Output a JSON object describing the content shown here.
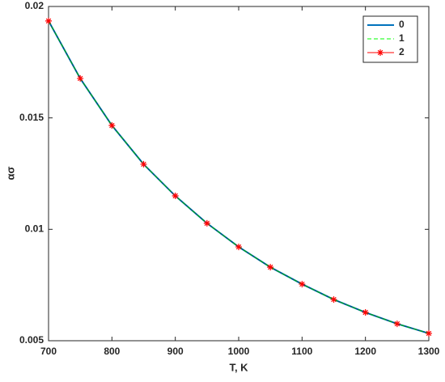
{
  "chart_data": {
    "type": "line",
    "xlabel": "T, K",
    "ylabel": "ασ",
    "x": [
      700,
      750,
      800,
      850,
      900,
      950,
      1000,
      1050,
      1100,
      1150,
      1200,
      1250,
      1300
    ],
    "series": [
      {
        "name": "0",
        "color": "#0072bd",
        "style": "solid",
        "values": [
          0.01935,
          0.01677,
          0.01466,
          0.01292,
          0.0115,
          0.01027,
          0.00921,
          0.0083,
          0.00754,
          0.00685,
          0.00627,
          0.00576,
          0.00533
        ]
      },
      {
        "name": "1",
        "color": "#00ff00",
        "style": "dashed",
        "values": [
          0.01935,
          0.01677,
          0.01466,
          0.01292,
          0.0115,
          0.01027,
          0.00921,
          0.0083,
          0.00754,
          0.00685,
          0.00627,
          0.00576,
          0.00533
        ]
      },
      {
        "name": "2",
        "color": "#ff0000",
        "style": "marker",
        "values": [
          0.01935,
          0.01677,
          0.01466,
          0.01292,
          0.0115,
          0.01027,
          0.00921,
          0.0083,
          0.00754,
          0.00685,
          0.00627,
          0.00576,
          0.00533
        ]
      }
    ],
    "xlim": [
      700,
      1300
    ],
    "xticks": [
      700,
      800,
      900,
      1000,
      1100,
      1200,
      1300
    ],
    "ylim": [
      0.005,
      0.02
    ],
    "yticks": [
      0.005,
      0.01,
      0.015,
      0.02
    ],
    "legend": "upper right"
  }
}
